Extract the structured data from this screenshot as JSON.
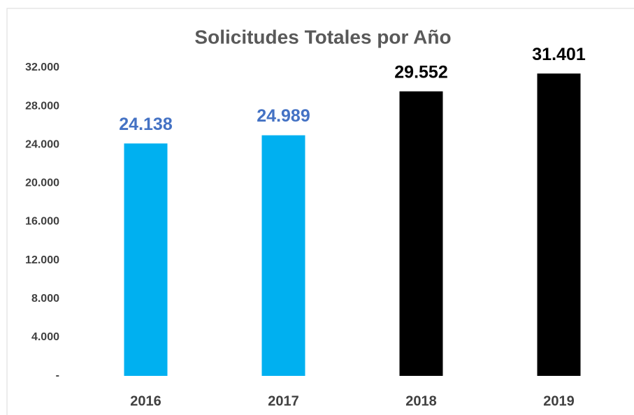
{
  "chart_data": {
    "type": "bar",
    "title": "Solicitudes Totales por Año",
    "categories": [
      "2016",
      "2017",
      "2018",
      "2019"
    ],
    "values": [
      24138,
      24989,
      29552,
      31401
    ],
    "value_labels": [
      "24.138",
      "24.989",
      "29.552",
      "31.401"
    ],
    "colors": [
      "#00b0f0",
      "#00b0f0",
      "#000000",
      "#000000"
    ],
    "value_label_colors": [
      "#4472c4",
      "#4472c4",
      "#000000",
      "#000000"
    ],
    "ylim": [
      0,
      32000
    ],
    "yticks": [
      {
        "value": 0,
        "label": "-"
      },
      {
        "value": 4000,
        "label": "4.000"
      },
      {
        "value": 8000,
        "label": "8.000"
      },
      {
        "value": 12000,
        "label": "12.000"
      },
      {
        "value": 16000,
        "label": "16.000"
      },
      {
        "value": 20000,
        "label": "20.000"
      },
      {
        "value": 24000,
        "label": "24.000"
      },
      {
        "value": 28000,
        "label": "28.000"
      },
      {
        "value": 32000,
        "label": "32.000"
      }
    ],
    "grid": false
  }
}
